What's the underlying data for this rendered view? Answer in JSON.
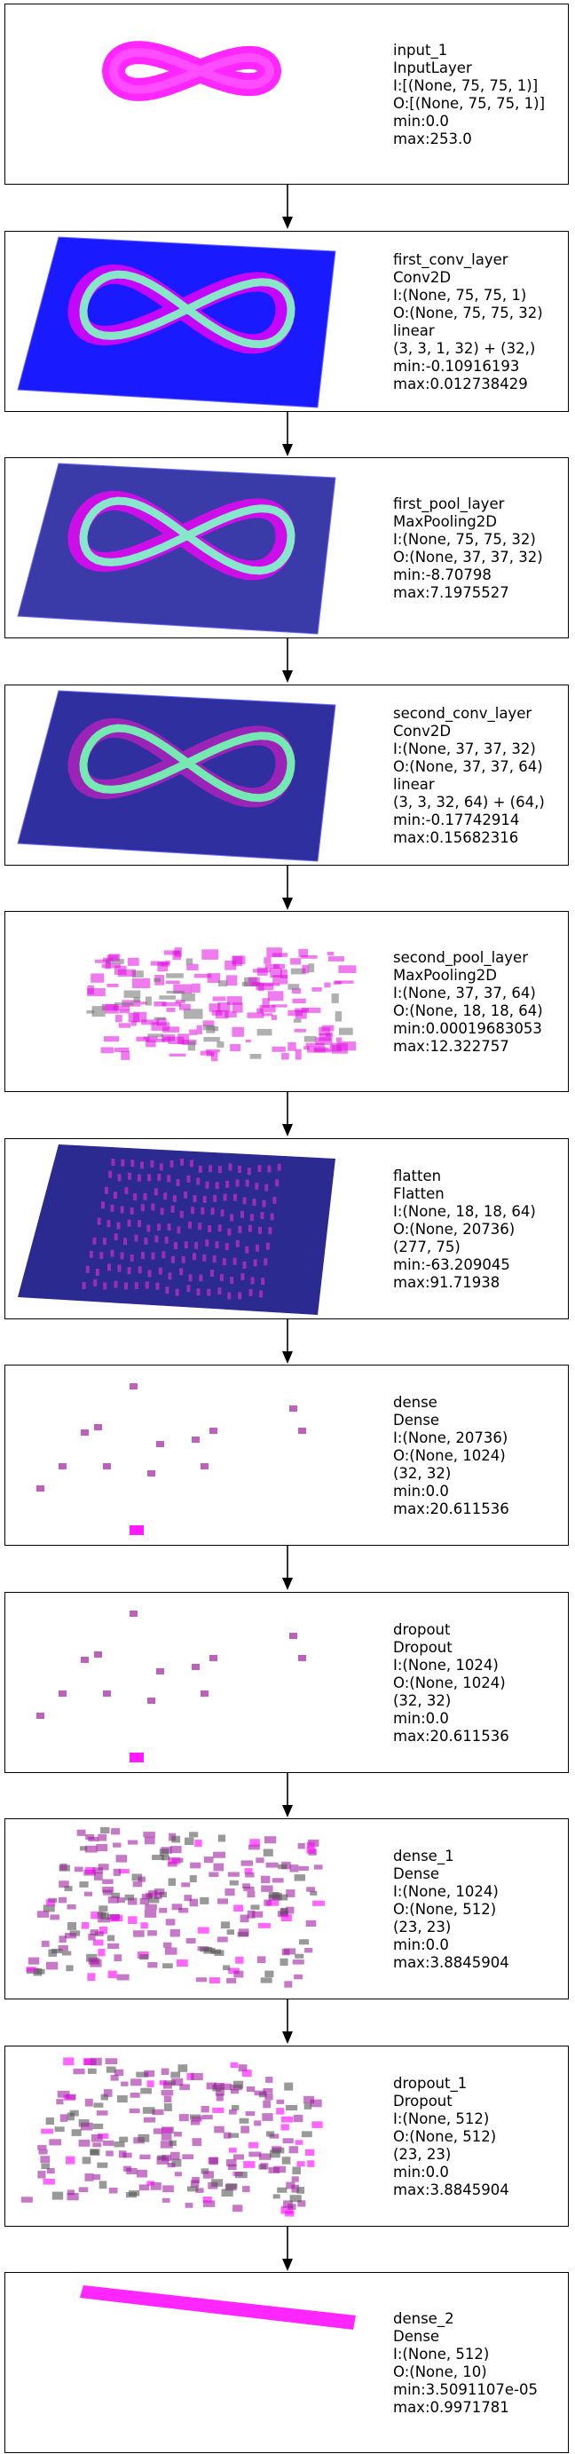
{
  "layers": [
    {
      "id": "input_1",
      "lines": [
        "input_1",
        "InputLayer",
        "I:[(None, 75, 75, 1)]",
        "O:[(None, 75, 75, 1)]",
        "min:0.0",
        "max:253.0"
      ],
      "viz": "blob",
      "colors": [
        "#ff00ff",
        "#ffffff"
      ]
    },
    {
      "id": "first_conv_layer",
      "lines": [
        "first_conv_layer",
        "Conv2D",
        "I:(None, 75, 75, 1)",
        "O:(None, 75, 75, 32)",
        "linear",
        "(3, 3, 1, 32) + (32,)",
        "min:-0.10916193",
        "max:0.012738429"
      ],
      "viz": "plane",
      "colors": [
        "#1a1aff",
        "#7fffc0",
        "#ff00ff"
      ]
    },
    {
      "id": "first_pool_layer",
      "lines": [
        "first_pool_layer",
        "MaxPooling2D",
        "I:(None, 75, 75, 32)",
        "O:(None, 37, 37, 32)",
        "min:-8.70798",
        "max:7.1975527"
      ],
      "viz": "plane",
      "colors": [
        "#3a3aa8",
        "#80ffc8",
        "#ff00ff"
      ]
    },
    {
      "id": "second_conv_layer",
      "lines": [
        "second_conv_layer",
        "Conv2D",
        "I:(None, 37, 37, 32)",
        "O:(None, 37, 37, 64)",
        "linear",
        "(3, 3, 32, 64) + (64,)",
        "min:-0.17742914",
        "max:0.15682316"
      ],
      "viz": "plane",
      "colors": [
        "#2f2fa0",
        "#70ffb0",
        "#c020c0"
      ]
    },
    {
      "id": "second_pool_layer",
      "lines": [
        "second_pool_layer",
        "MaxPooling2D",
        "I:(None, 37, 37, 64)",
        "O:(None, 18, 18, 64)",
        "min:0.00019683053",
        "max:12.322757"
      ],
      "viz": "cloud",
      "colors": [
        "#e010e0",
        "#707070"
      ]
    },
    {
      "id": "flatten",
      "lines": [
        "flatten",
        "Flatten",
        "I:(None, 18, 18, 64)",
        "O:(None, 20736)",
        "(277, 75)",
        "min:-63.209045",
        "max:91.71938"
      ],
      "viz": "stripes",
      "colors": [
        "#2a2a90",
        "#c030c0"
      ]
    },
    {
      "id": "dense",
      "lines": [
        "dense",
        "Dense",
        "I:(None, 20736)",
        "O:(None, 1024)",
        "(32, 32)",
        "min:0.0",
        "max:20.611536"
      ],
      "viz": "sparse",
      "colors": [
        "#a020a0",
        "#ff00ff"
      ]
    },
    {
      "id": "dropout",
      "lines": [
        "dropout",
        "Dropout",
        "I:(None, 1024)",
        "O:(None, 1024)",
        "(32, 32)",
        "min:0.0",
        "max:20.611536"
      ],
      "viz": "sparse",
      "colors": [
        "#a020a0",
        "#ff00ff"
      ]
    },
    {
      "id": "dense_1",
      "lines": [
        "dense_1",
        "Dense",
        "I:(None, 1024)",
        "O:(None, 512)",
        "(23, 23)",
        "min:0.0",
        "max:3.8845904"
      ],
      "viz": "dense",
      "colors": [
        "#a020a0",
        "#ff00ff",
        "#555555"
      ]
    },
    {
      "id": "dropout_1",
      "lines": [
        "dropout_1",
        "Dropout",
        "I:(None, 512)",
        "O:(None, 512)",
        "(23, 23)",
        "min:0.0",
        "max:3.8845904"
      ],
      "viz": "dense",
      "colors": [
        "#a020a0",
        "#ff00ff",
        "#555555"
      ]
    },
    {
      "id": "dense_2",
      "lines": [
        "dense_2",
        "Dense",
        "I:(None, 512)",
        "O:(None, 10)",
        "min:3.5091107e-05",
        "max:0.9971781"
      ],
      "viz": "bar",
      "colors": [
        "#ff00ff"
      ]
    }
  ],
  "arrow_color": "#000000"
}
